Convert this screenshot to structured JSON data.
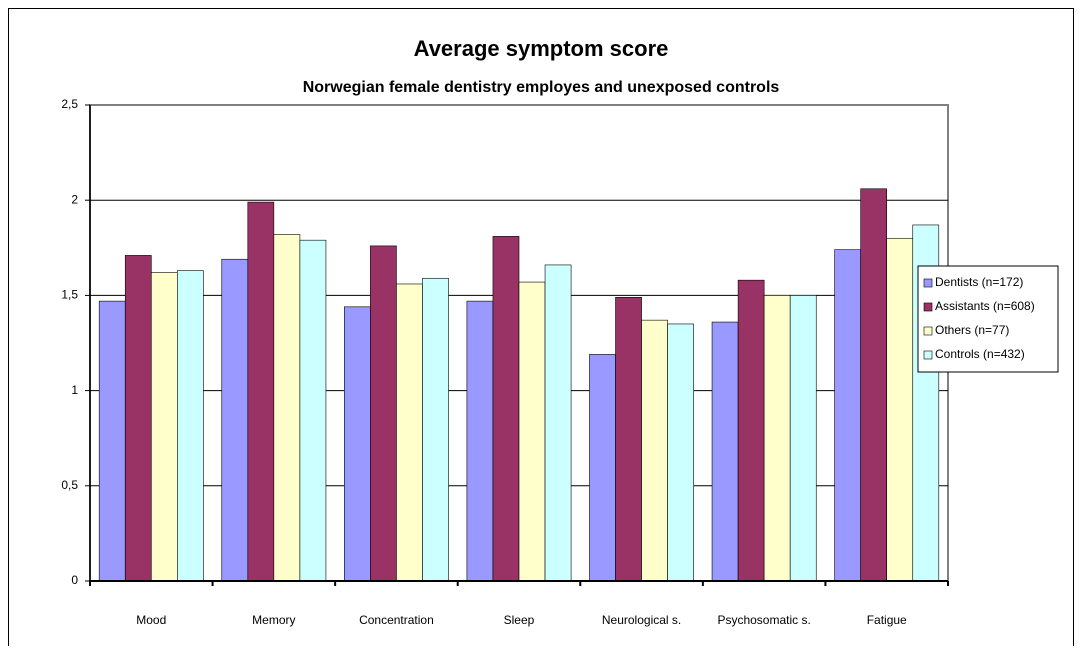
{
  "chart_data": {
    "type": "bar",
    "title": "Average symptom score",
    "subtitle": "Norwegian female dentistry employes and unexposed controls",
    "categories": [
      "Mood",
      "Memory",
      "Concentration",
      "Sleep",
      "Neurological s.",
      "Psychosomatic s.",
      "Fatigue"
    ],
    "series": [
      {
        "name": "Dentists (n=172)",
        "color": "#9999ff",
        "values": [
          1.47,
          1.69,
          1.44,
          1.47,
          1.19,
          1.36,
          1.74
        ]
      },
      {
        "name": "Assistants (n=608)",
        "color": "#993366",
        "values": [
          1.71,
          1.99,
          1.76,
          1.81,
          1.49,
          1.58,
          2.06
        ]
      },
      {
        "name": "Others (n=77)",
        "color": "#ffffcc",
        "values": [
          1.62,
          1.82,
          1.56,
          1.57,
          1.37,
          1.5,
          1.8
        ]
      },
      {
        "name": "Controls (n=432)",
        "color": "#ccffff",
        "values": [
          1.63,
          1.79,
          1.59,
          1.66,
          1.35,
          1.5,
          1.87
        ]
      }
    ],
    "ylim": [
      0,
      2.5
    ],
    "yticks": [
      0,
      {
        "value": 0.5,
        "label": "0,5"
      },
      1,
      {
        "value": 1.5,
        "label": "1,5"
      },
      2,
      {
        "value": 2.5,
        "label": "2,5"
      }
    ],
    "grid": true,
    "legend": "right"
  }
}
